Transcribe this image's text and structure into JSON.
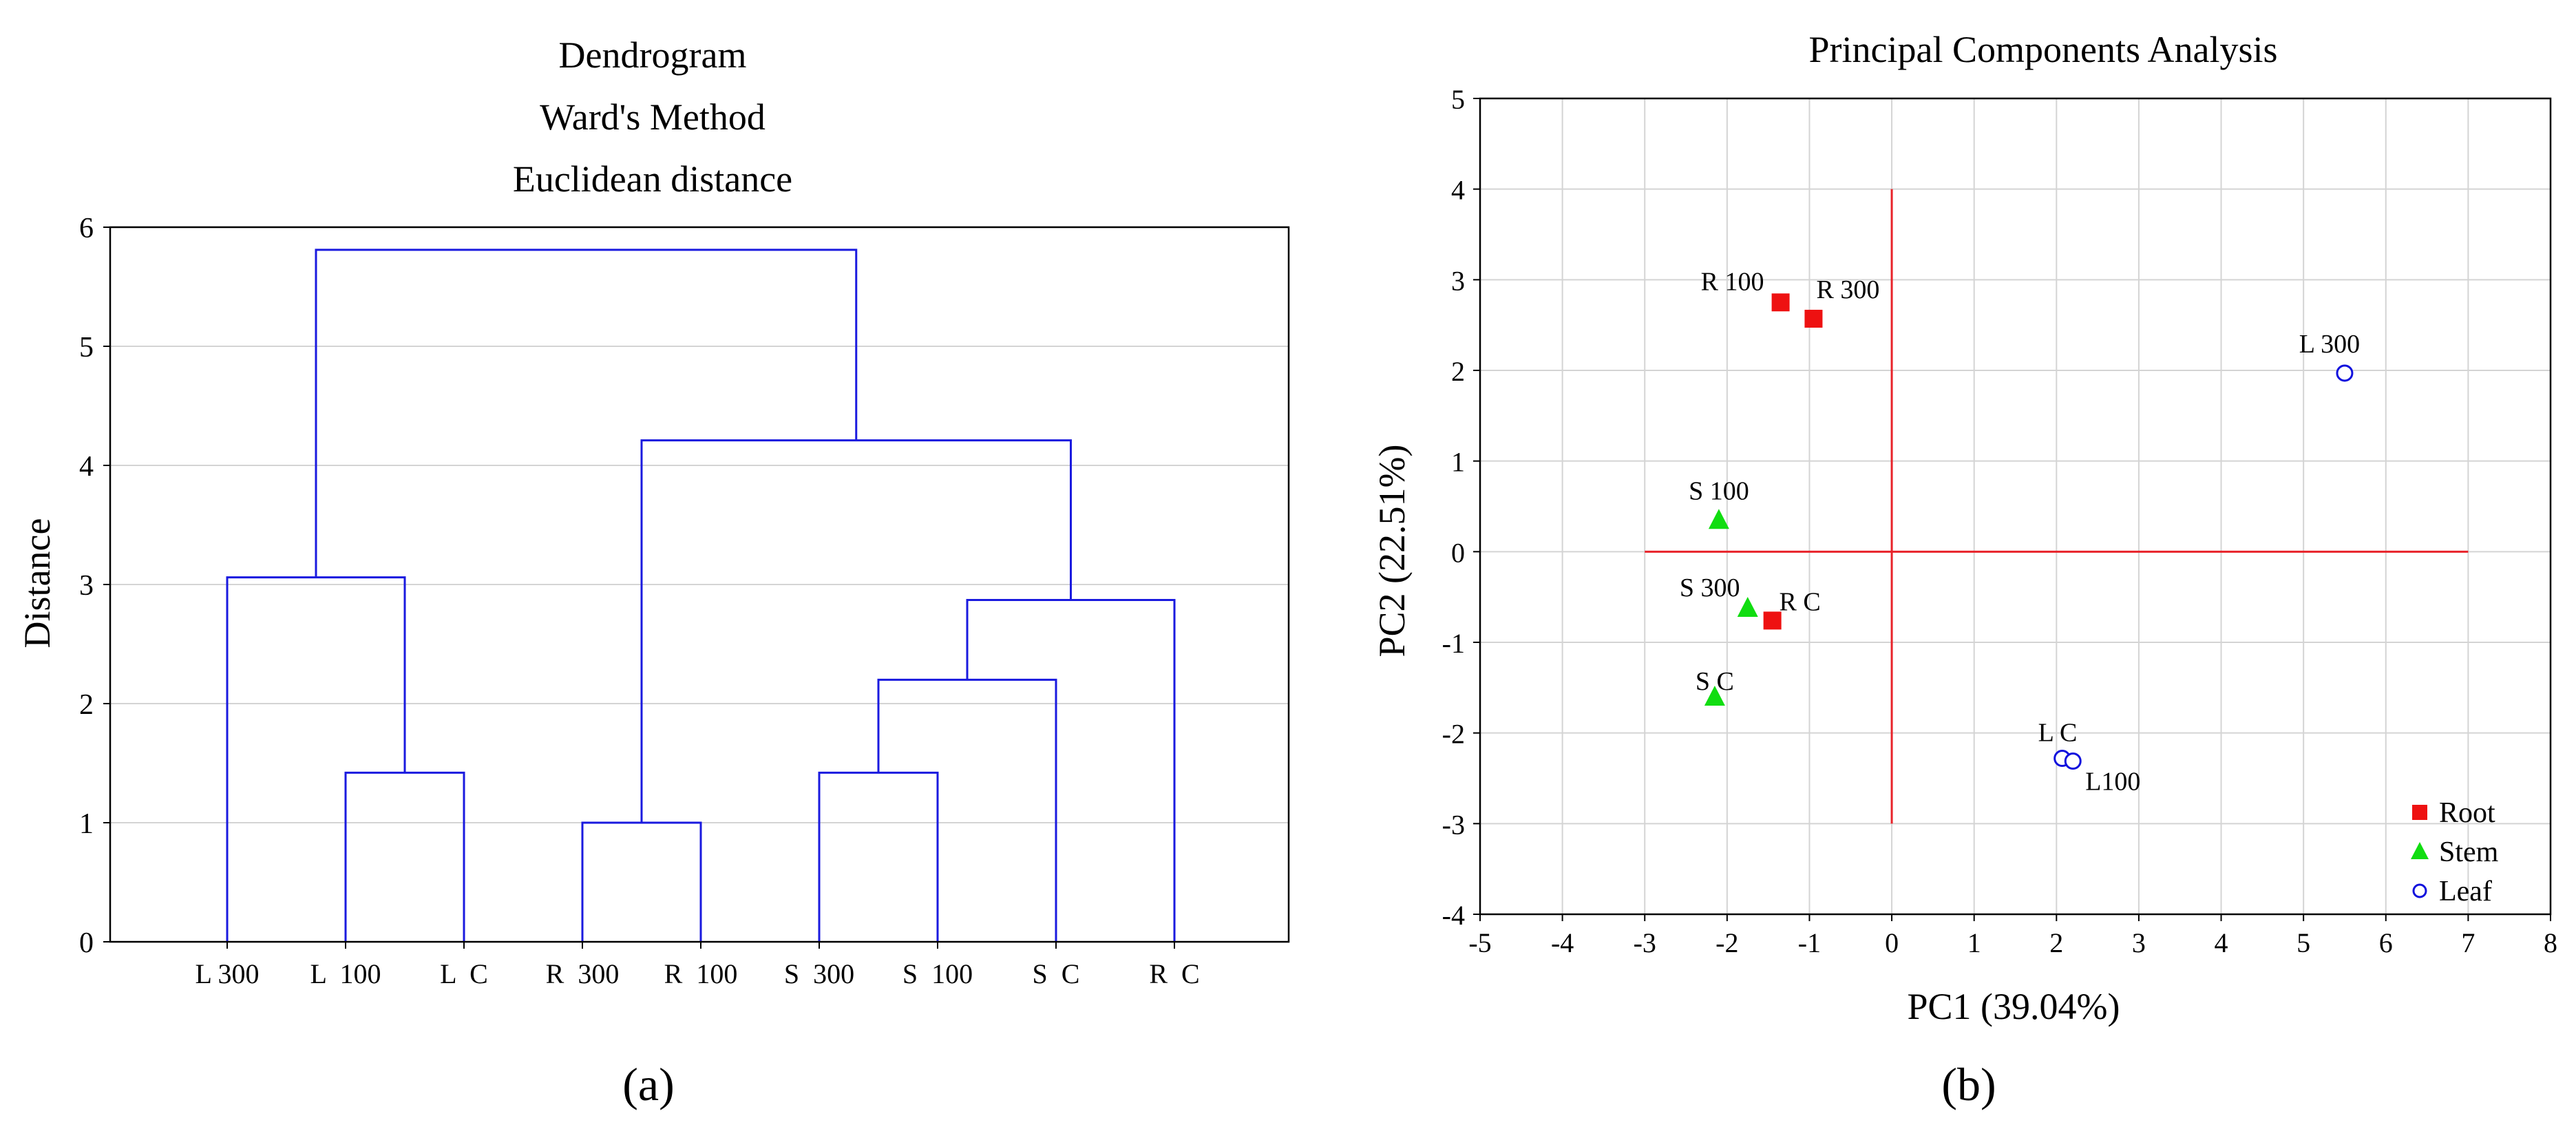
{
  "chart_data": [
    {
      "type": "dendrogram",
      "title_lines": [
        "Dendrogram",
        "Ward's Method",
        "Euclidean distance"
      ],
      "ylabel": "Distance",
      "ylim": [
        0,
        6
      ],
      "yticks": [
        "0",
        "1",
        "2",
        "3",
        "4",
        "5",
        "6"
      ],
      "grid": true,
      "leaves": [
        "L 300",
        "L  100",
        "L  C",
        "R  300",
        "R  100",
        "S  300",
        "S  100",
        "S  C",
        "R  C"
      ],
      "merges": [
        {
          "left": 3,
          "right": 4,
          "height": 1.0
        },
        {
          "left": 1,
          "right": 2,
          "height": 1.42
        },
        {
          "left": 5,
          "right": 6,
          "height": 1.42
        },
        {
          "left": 11,
          "right": 7,
          "height": 2.2
        },
        {
          "left": 12,
          "right": 8,
          "height": 2.87
        },
        {
          "left": 0,
          "right": 10,
          "height": 3.06
        },
        {
          "left": 9,
          "right": 13,
          "height": 4.21
        },
        {
          "left": 14,
          "right": 15,
          "height": 5.81
        }
      ],
      "caption": "(a)"
    },
    {
      "type": "scatter",
      "title": "Principal Components Analysis",
      "xlabel": "PC1 (39.04%)",
      "ylabel": "PC2  (22.51%)",
      "xlim": [
        -5,
        8
      ],
      "ylim": [
        -4,
        5
      ],
      "xticks": [
        "-5",
        "-4",
        "-3",
        "-2",
        "-1",
        "0",
        "1",
        "2",
        "3",
        "4",
        "5",
        "6",
        "7",
        "8"
      ],
      "yticks": [
        "-4",
        "-3",
        "-2",
        "-1",
        "0",
        "1",
        "2",
        "3",
        "4",
        "5"
      ],
      "grid": true,
      "reference_lines": {
        "horizontal": {
          "y": 0,
          "x_from": -3,
          "x_to": 7
        },
        "vertical": {
          "x": 0,
          "y_from": -3,
          "y_to": 4
        },
        "color": "#e8232a"
      },
      "series": [
        {
          "name": "Root",
          "marker": "square",
          "color": "#ee1111",
          "points": [
            {
              "label": "R 100",
              "x": -1.35,
              "y": 2.75
            },
            {
              "label": "R 300",
              "x": -0.95,
              "y": 2.57
            },
            {
              "label": "R C",
              "x": -1.45,
              "y": -0.76
            }
          ]
        },
        {
          "name": "Stem",
          "marker": "triangle",
          "color": "#11dd11",
          "points": [
            {
              "label": "S 100",
              "x": -2.1,
              "y": 0.35
            },
            {
              "label": "S 300",
              "x": -1.75,
              "y": -0.62
            },
            {
              "label": "S C",
              "x": -2.15,
              "y": -1.6
            }
          ]
        },
        {
          "name": "Leaf",
          "marker": "circle",
          "color": "#1111dd",
          "points": [
            {
              "label": "L 300",
              "x": 5.5,
              "y": 1.97
            },
            {
              "label": "L C",
              "x": 2.07,
              "y": -2.28
            },
            {
              "label": "L100",
              "x": 2.2,
              "y": -2.31
            }
          ]
        }
      ],
      "legend": "bottom-right",
      "caption": "(b)"
    }
  ]
}
